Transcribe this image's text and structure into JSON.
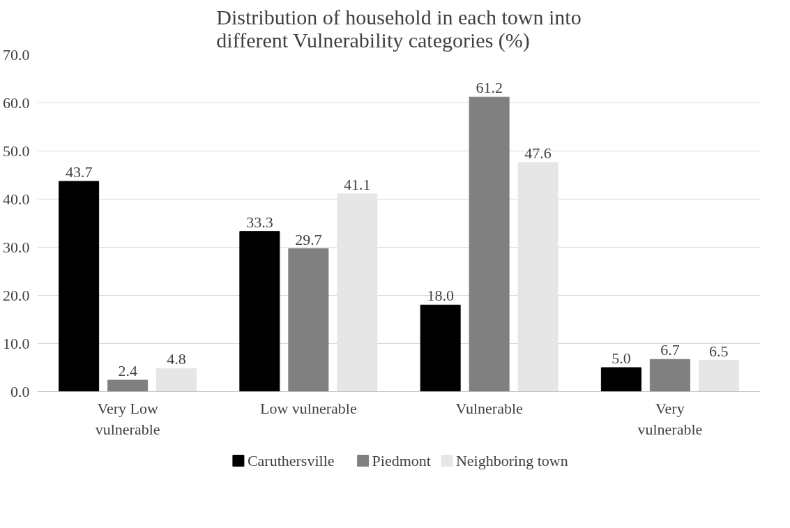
{
  "chart_data": {
    "type": "bar",
    "title": "Distribution of household in each town into different Vulnerability categories (%)",
    "categories": [
      "Very Low vulnerable",
      "Low vulnerable",
      "Vulnerable",
      "Very vulnerable"
    ],
    "series": [
      {
        "name": "Caruthersville",
        "color": "#000000",
        "values": [
          43.7,
          33.3,
          18.0,
          5.0
        ],
        "value_labels": [
          "43.7",
          "33.3",
          "18.0",
          "5.0"
        ]
      },
      {
        "name": "Piedmont",
        "color": "#808080",
        "values": [
          2.4,
          29.7,
          61.2,
          6.7
        ],
        "value_labels": [
          "2.4",
          "29.7",
          "61.2",
          "6.7"
        ]
      },
      {
        "name": "Neighboring town",
        "color": "#e7e6e6",
        "values": [
          4.8,
          41.1,
          47.6,
          6.5
        ],
        "value_labels": [
          "4.8",
          "41.1",
          "47.6",
          "6.5"
        ]
      }
    ],
    "ylim": [
      0,
      70
    ],
    "yticks": [
      {
        "value": 0,
        "label": "0.0"
      },
      {
        "value": 10,
        "label": "10.0"
      },
      {
        "value": 20,
        "label": "20.0"
      },
      {
        "value": 30,
        "label": "30.0"
      },
      {
        "value": 40,
        "label": "40.0"
      },
      {
        "value": 50,
        "label": "50.0"
      },
      {
        "value": 60,
        "label": "60.0"
      },
      {
        "value": 70,
        "label": "70.0"
      }
    ],
    "grid": "y",
    "legend": "bottom"
  }
}
